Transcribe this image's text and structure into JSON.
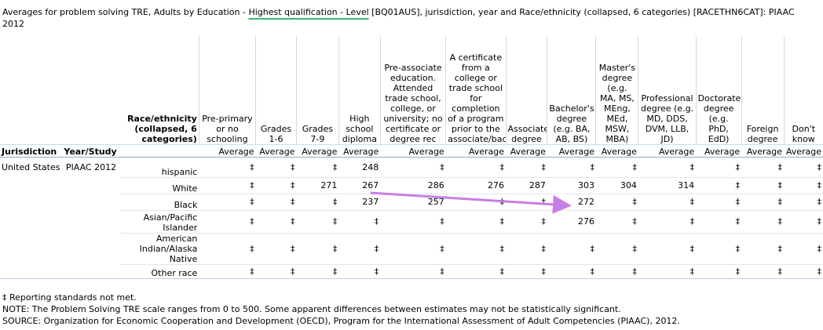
{
  "caption": {
    "before": "Averages for problem solving TRE, Adults by Education - ",
    "highlight": "Highest qualification - Level",
    "after": " [BQ01AUS], jurisdiction, year and Race/ethnicity (collapsed, 6 categories) [RACETHN6CAT]: PIAAC 2012"
  },
  "header": {
    "race_label": "Race/ethnicity (collapsed, 6 categories)",
    "jurisdiction_label": "Jurisdiction",
    "year_label": "Year/Study",
    "columns": [
      "Pre-primary or no schooling",
      "Grades 1-6",
      "Grades 7-9",
      "High school diploma",
      "Pre-associate education. Attended trade school, college, or university; no certificate or degree rec",
      "A certificate from a college or trade school for completion of a program prior to the associate/bach",
      "Associate degree",
      "Bachelor's degree (e.g. BA, AB, BS)",
      "Master's degree (e.g. MA, MS, MEng, MEd, MSW, MBA)",
      "Professional degree (e.g. MD, DDS, DVM, LLB, JD)",
      "Doctorate degree (e.g. PhD, EdD)",
      "Foreign degree",
      "Don't know"
    ],
    "stat_label": "Average"
  },
  "rows": [
    {
      "jurisdiction": "United States",
      "year": "PIAAC 2012",
      "race": "hispanic",
      "values": [
        "‡",
        "‡",
        "‡",
        "248",
        "‡",
        "‡",
        "‡",
        "‡",
        "‡",
        "‡",
        "‡",
        "‡",
        "‡"
      ]
    },
    {
      "jurisdiction": "",
      "year": "",
      "race": "White",
      "values": [
        "‡",
        "‡",
        "271",
        "267",
        "286",
        "276",
        "287",
        "303",
        "304",
        "314",
        "‡",
        "‡",
        "‡"
      ]
    },
    {
      "jurisdiction": "",
      "year": "",
      "race": "Black",
      "values": [
        "‡",
        "‡",
        "‡",
        "237",
        "257",
        "‡",
        "‡",
        "272",
        "‡",
        "‡",
        "‡",
        "‡",
        "‡"
      ]
    },
    {
      "jurisdiction": "",
      "year": "",
      "race": "Asian/Pacific Islander",
      "values": [
        "‡",
        "‡",
        "‡",
        "‡",
        "‡",
        "‡",
        "‡",
        "276",
        "‡",
        "‡",
        "‡",
        "‡",
        "‡"
      ]
    },
    {
      "jurisdiction": "",
      "year": "",
      "race": "American Indian/Alaska Native",
      "values": [
        "‡",
        "‡",
        "‡",
        "‡",
        "‡",
        "‡",
        "‡",
        "‡",
        "‡",
        "‡",
        "‡",
        "‡",
        "‡"
      ]
    },
    {
      "jurisdiction": "",
      "year": "",
      "race": "Other race",
      "values": [
        "‡",
        "‡",
        "‡",
        "‡",
        "‡",
        "‡",
        "‡",
        "‡",
        "‡",
        "‡",
        "‡",
        "‡",
        "‡"
      ]
    }
  ],
  "notes": [
    "‡ Reporting standards not met.",
    "NOTE: The Problem Solving TRE scale ranges from 0 to 500. Some apparent differences between estimates may not be statistically significant.",
    "SOURCE: Organization for Economic Cooperation and Development (OECD), Program for the International Assessment of Adult Competencies (PIAAC), 2012."
  ],
  "colors": {
    "annotation_arrow": "#c77ee6",
    "highlight_underline": "#3cb371",
    "grid_line": "#c6dced"
  }
}
